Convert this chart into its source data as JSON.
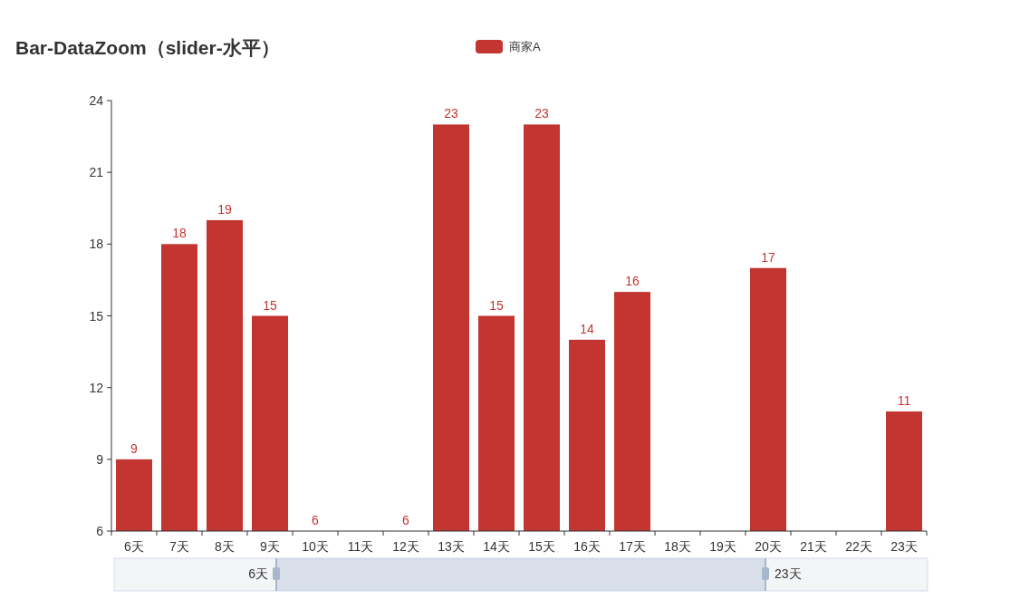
{
  "chart_data": {
    "type": "bar",
    "title": "Bar-DataZoom（slider-水平）",
    "categories": [
      "6天",
      "7天",
      "8天",
      "9天",
      "10天",
      "11天",
      "12天",
      "13天",
      "14天",
      "15天",
      "16天",
      "17天",
      "18天",
      "19天",
      "20天",
      "21天",
      "22天",
      "23天"
    ],
    "series": [
      {
        "name": "商家A",
        "color": "#c23531",
        "values": [
          9,
          18,
          19,
          15,
          6,
          null,
          6,
          23,
          15,
          23,
          14,
          16,
          null,
          null,
          17,
          null,
          null,
          11
        ]
      }
    ],
    "ylim": [
      6,
      24
    ],
    "yticks": [
      6,
      9,
      12,
      15,
      18,
      21,
      24
    ],
    "data_labels": true,
    "legend": "top"
  }
}
